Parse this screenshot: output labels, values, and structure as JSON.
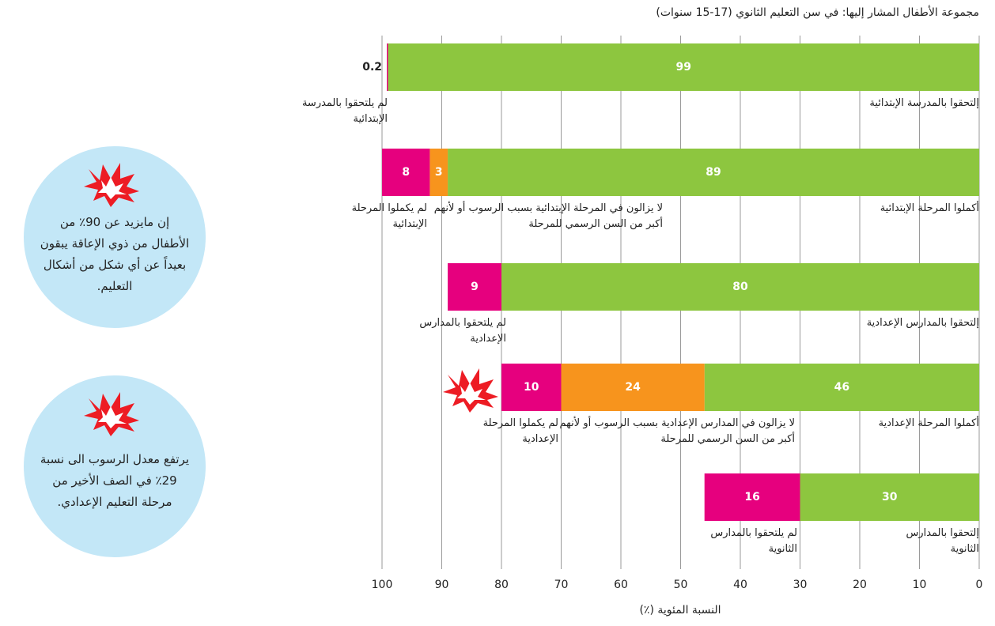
{
  "chart_data": {
    "type": "bar",
    "orientation": "horizontal",
    "stacked": true,
    "title": "مجموعة الأطفال المشار إليها: في سن التعليم الثانوي (17-15 سنوات)",
    "xlabel": "النسبة المئوية (٪)",
    "xlim": [
      100,
      0
    ],
    "xticks": [
      100,
      90,
      80,
      70,
      60,
      50,
      40,
      30,
      20,
      10,
      0
    ],
    "grid": true,
    "bars": [
      {
        "segments": [
          {
            "value": 99,
            "color": "#8dc63f",
            "label": "إلتحقوا بالمدرسة الإبتدائية"
          },
          {
            "value": 0.2,
            "color": "#e6007e",
            "label": "لم يلتحقوا بالمدرسة الإبتدائية"
          }
        ]
      },
      {
        "segments": [
          {
            "value": 89,
            "color": "#8dc63f",
            "label": "أكملوا المرحلة الإبتدائية"
          },
          {
            "value": 3,
            "color": "#f7941d",
            "label": "لا يزالون في المرحلة الإبتدائية بسبب الرسوب أو لأنهم أكبر من السن الرسمي للمرحلة"
          },
          {
            "value": 8,
            "color": "#e6007e",
            "label": "لم يكملوا المرحلة الإبتدائية"
          }
        ]
      },
      {
        "segments": [
          {
            "value": 80,
            "color": "#8dc63f",
            "label": "إلتحقوا بالمدارس الإعدادية"
          },
          {
            "value": 9,
            "color": "#e6007e",
            "label": "لم يلتحقوا بالمدارس الإعدادية"
          }
        ]
      },
      {
        "segments": [
          {
            "value": 46,
            "color": "#8dc63f",
            "label": "أكملوا المرحلة الإعدادية"
          },
          {
            "value": 24,
            "color": "#f7941d",
            "label": "لا يزالون في المدارس الإعدادية بسبب الرسوب أو لأنهم أكبر من السن الرسمي للمرحلة"
          },
          {
            "value": 10,
            "color": "#e6007e",
            "label": "لم يكملوا المرحلة الإعدادية"
          }
        ]
      },
      {
        "segments": [
          {
            "value": 30,
            "color": "#8dc63f",
            "label": "إلتحقوا بالمدارس الثانوية"
          },
          {
            "value": 16,
            "color": "#e6007e",
            "label": "لم يلتحقوا بالمدارس الثانوية"
          }
        ]
      }
    ],
    "callouts": [
      "إن مايزيد عن 90٪ من الأطفال من ذوي الإعاقة يبقون بعيداً عن أي شكل من أشكال التعليم.",
      "يرتفع معدل الرسوب الى نسبة 29٪ في الصف الأخير من مرحلة التعليم الإعدادي."
    ]
  }
}
